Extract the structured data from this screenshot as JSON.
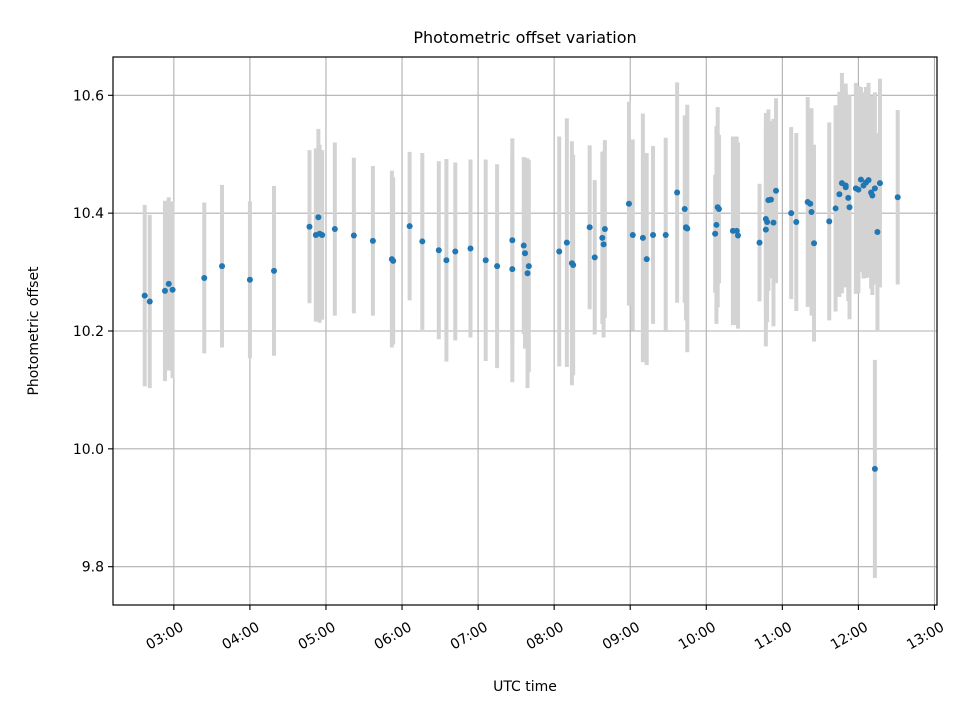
{
  "chart_data": {
    "type": "scatter",
    "title": "Photometric offset variation",
    "xlabel": "UTC time",
    "ylabel": "Photometric offset",
    "xlim": [
      "02:12",
      "13:02"
    ],
    "ylim": [
      9.735,
      10.665
    ],
    "x_ticks": [
      "03:00",
      "04:00",
      "05:00",
      "06:00",
      "07:00",
      "08:00",
      "09:00",
      "10:00",
      "11:00",
      "12:00",
      "13:00"
    ],
    "y_ticks": [
      "9.8",
      "10.0",
      "10.2",
      "10.4",
      "10.6"
    ],
    "grid": true,
    "colors": {
      "points": "#1f77b4",
      "error_bars": "#d3d3d3",
      "grid": "#b0b0b0"
    },
    "series": [
      {
        "x": [
          "02:37",
          "02:41",
          "02:53",
          "02:56",
          "02:59",
          "03:24",
          "03:38",
          "04:00",
          "04:19",
          "04:47",
          "04:52",
          "04:54",
          "04:55",
          "04:57",
          "05:07",
          "05:22",
          "05:37",
          "05:52",
          "05:53",
          "06:06",
          "06:16",
          "06:29",
          "06:35",
          "06:42",
          "06:54",
          "07:06",
          "07:15",
          "07:27",
          "07:27",
          "07:36",
          "07:37",
          "07:39",
          "07:40",
          "08:04",
          "08:10",
          "08:14",
          "08:15",
          "08:28",
          "08:32",
          "08:38",
          "08:39",
          "08:40",
          "08:59",
          "09:02",
          "09:10",
          "09:13",
          "09:18",
          "09:28",
          "09:37",
          "09:43",
          "09:44",
          "09:44",
          "09:45",
          "10:07",
          "10:08",
          "10:09",
          "10:10",
          "10:21",
          "10:24",
          "10:25",
          "10:42",
          "10:47",
          "10:47",
          "10:48",
          "10:49",
          "10:51",
          "10:53",
          "10:55",
          "11:07",
          "11:11",
          "11:20",
          "11:22",
          "11:23",
          "11:25",
          "11:37",
          "11:42",
          "11:45",
          "11:47",
          "11:50",
          "11:50",
          "11:52",
          "11:53",
          "11:58",
          "12:00",
          "12:02",
          "12:04",
          "12:06",
          "12:08",
          "12:10",
          "12:11",
          "12:13",
          "12:13",
          "12:15",
          "12:17",
          "12:31"
        ],
        "y": [
          10.26,
          10.25,
          10.268,
          10.28,
          10.27,
          10.29,
          10.31,
          10.287,
          10.302,
          10.377,
          10.363,
          10.393,
          10.365,
          10.363,
          10.373,
          10.362,
          10.353,
          10.322,
          10.319,
          10.378,
          10.352,
          10.337,
          10.32,
          10.335,
          10.34,
          10.32,
          10.31,
          10.354,
          10.305,
          10.345,
          10.332,
          10.298,
          10.31,
          10.335,
          10.35,
          10.315,
          10.312,
          10.376,
          10.325,
          10.358,
          10.347,
          10.373,
          10.416,
          10.363,
          10.358,
          10.322,
          10.363,
          10.363,
          10.435,
          10.407,
          10.375,
          10.376,
          10.374,
          10.365,
          10.38,
          10.41,
          10.407,
          10.37,
          10.37,
          10.362,
          10.35,
          10.39,
          10.372,
          10.385,
          10.422,
          10.423,
          10.384,
          10.438,
          10.4,
          10.385,
          10.419,
          10.416,
          10.402,
          10.349,
          10.386,
          10.408,
          10.432,
          10.451,
          10.444,
          10.447,
          10.426,
          10.41,
          10.442,
          10.44,
          10.457,
          10.447,
          10.452,
          10.456,
          10.435,
          10.43,
          10.442,
          9.966,
          10.368,
          10.451,
          10.427
        ],
        "err": [
          0.154,
          0.147,
          0.153,
          0.147,
          0.15,
          0.128,
          0.138,
          0.133,
          0.144,
          0.13,
          0.147,
          0.15,
          0.151,
          0.144,
          0.147,
          0.132,
          0.127,
          0.15,
          0.142,
          0.126,
          0.15,
          0.151,
          0.172,
          0.151,
          0.151,
          0.171,
          0.173,
          0.173,
          0.192,
          0.15,
          0.162,
          0.195,
          0.18,
          0.195,
          0.211,
          0.207,
          0.187,
          0.139,
          0.131,
          0.146,
          0.158,
          0.151,
          0.173,
          0.162,
          0.211,
          0.18,
          0.151,
          0.165,
          0.187,
          0.159,
          0.126,
          0.158,
          0.21,
          0.1,
          0.168,
          0.17,
          0.126,
          0.16,
          0.16,
          0.158,
          0.1,
          0.152,
          0.198,
          0.17,
          0.154,
          0.133,
          0.176,
          0.157,
          0.146,
          0.151,
          0.178,
          0.162,
          0.176,
          0.167,
          0.168,
          0.175,
          0.174,
          0.187,
          0.167,
          0.173,
          0.175,
          0.19,
          0.179,
          0.176,
          0.157,
          0.158,
          0.162,
          0.165,
          0.163,
          0.169,
          0.163,
          0.185,
          0.168,
          0.177,
          0.148
        ]
      }
    ]
  }
}
